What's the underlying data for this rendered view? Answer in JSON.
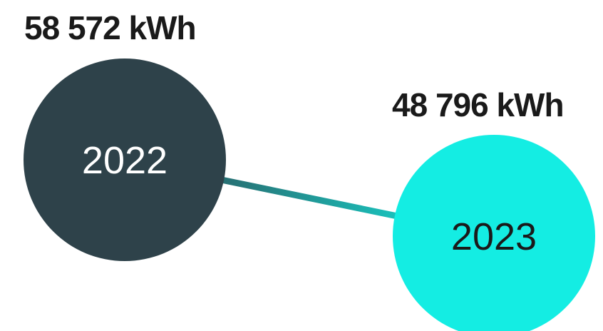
{
  "chart_data": {
    "type": "scatter",
    "categories": [
      "2022",
      "2023"
    ],
    "series": [
      {
        "values": [
          58572,
          48796
        ],
        "value_labels": [
          "58 572 kWh",
          "48 796 kWh"
        ],
        "colors": [
          "#2e424a",
          "#14ede3"
        ],
        "text_colors": [
          "#ffffff",
          "#1a1a1a"
        ]
      }
    ],
    "unit": "kWh",
    "title": "",
    "xlabel": "",
    "ylabel": "",
    "grid": false,
    "connector": {
      "color_start": "#2e424a",
      "color_end": "#14ede3"
    }
  }
}
